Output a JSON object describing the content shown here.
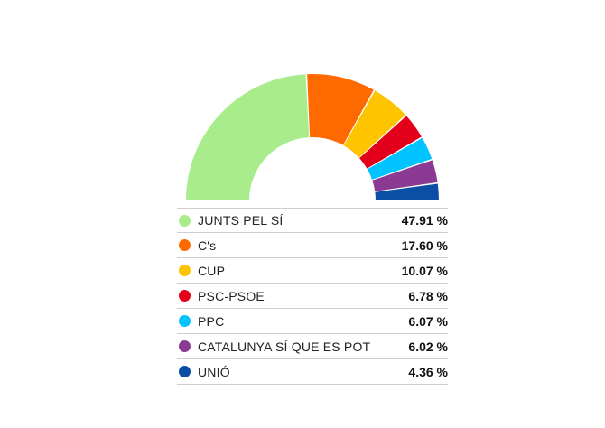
{
  "chart_data": {
    "type": "pie",
    "variant": "semicircle-donut",
    "legend_position": "bottom",
    "series": [
      {
        "name": "JUNTS PEL SÍ",
        "value": 47.91,
        "label": "47.91 %",
        "color": "#a8ec8c"
      },
      {
        "name": "C's",
        "value": 17.6,
        "label": "17.60 %",
        "color": "#ff6a00"
      },
      {
        "name": "CUP",
        "value": 10.07,
        "label": "10.07 %",
        "color": "#ffc400"
      },
      {
        "name": "PSC-PSOE",
        "value": 6.78,
        "label": "6.78 %",
        "color": "#e3001b"
      },
      {
        "name": "PPC",
        "value": 6.07,
        "label": "6.07 %",
        "color": "#00c3ff"
      },
      {
        "name": "CATALUNYA SÍ QUE ES POT",
        "value": 6.02,
        "label": "6.02 %",
        "color": "#8a3a92"
      },
      {
        "name": "UNIÓ",
        "value": 4.36,
        "label": "4.36 %",
        "color": "#0a4ea5"
      }
    ]
  }
}
